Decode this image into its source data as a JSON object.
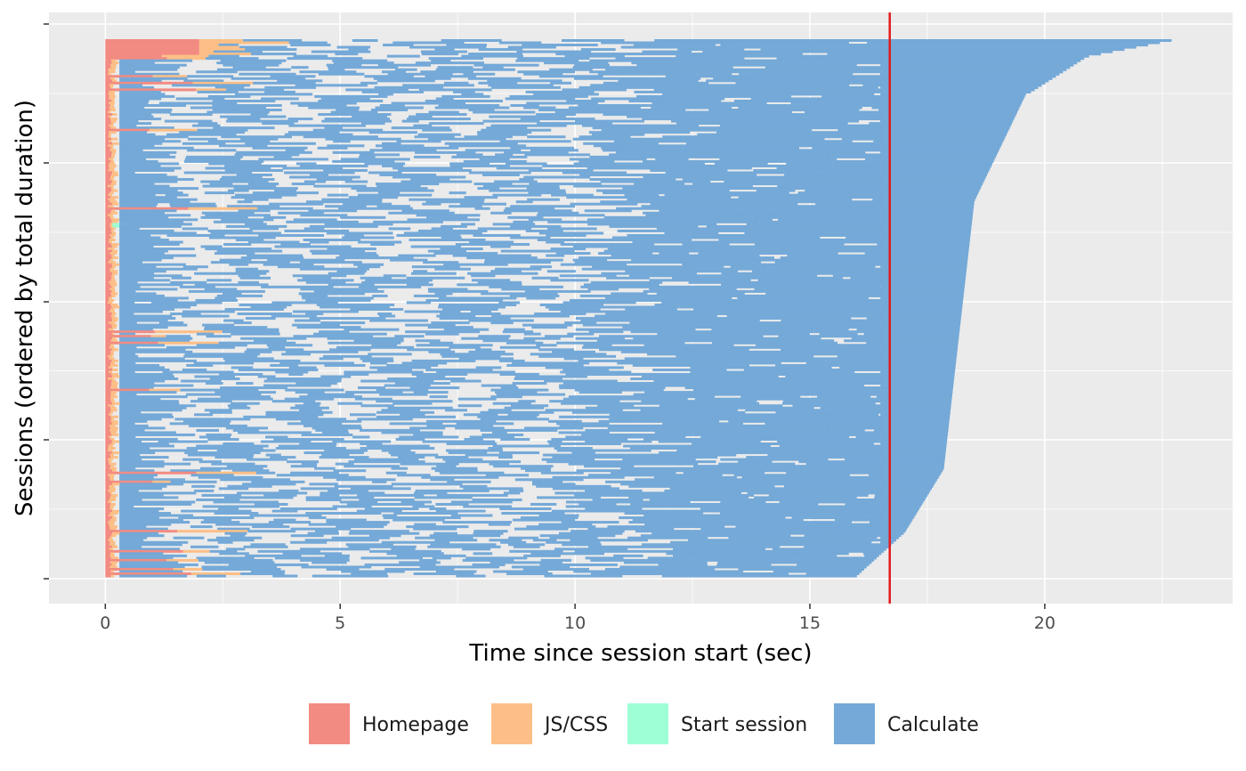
{
  "chart_data": {
    "type": "timeline",
    "xlabel": "Time since session start (sec)",
    "ylabel": "Sessions (ordered by total duration)",
    "xlim": [
      -1.2,
      24.0
    ],
    "x_ticks": [
      0,
      5,
      10,
      15,
      20
    ],
    "grid": true,
    "n_sessions": 240,
    "reference_line": {
      "x": 16.7,
      "color": "#e41a1c"
    },
    "legend": {
      "placement": "bottom",
      "items": [
        {
          "label": "Homepage",
          "color": "#f28b82"
        },
        {
          "label": "JS/CSS",
          "color": "#fdbf87"
        },
        {
          "label": "Start session",
          "color": "#9effd5"
        },
        {
          "label": "Calculate",
          "color": "#74a9d8"
        }
      ]
    },
    "sessions_note": "240 sessions; each begins with a short Homepage + JS/CSS load, then repeated Calculate requests. Total duration increases from ~16 s (bottom rows) to ~22.7 s (top row).",
    "session_duration_profile": {
      "bottom_row_end": 16.0,
      "top_row_end": 22.7
    }
  }
}
